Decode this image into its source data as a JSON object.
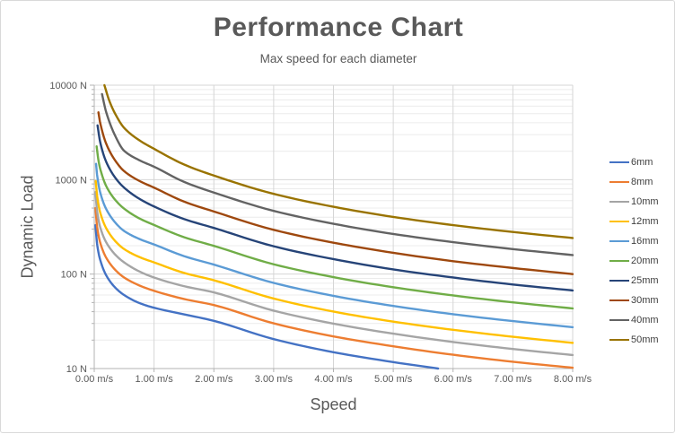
{
  "chart": {
    "title": "Performance Chart",
    "subtitle": "Max speed for each diameter",
    "x_axis": {
      "label": "Speed",
      "min": 0,
      "max": 8,
      "tick_values": [
        0,
        1,
        2,
        3,
        4,
        5,
        6,
        7,
        8
      ],
      "tick_labels": [
        "0.00 m/s",
        "1.00 m/s",
        "2.00 m/s",
        "3.00 m/s",
        "4.00 m/s",
        "5.00 m/s",
        "6.00 m/s",
        "7.00 m/s",
        "8.00 m/s"
      ]
    },
    "y_axis": {
      "label": "Dynamic Load",
      "scale": "log",
      "min": 10,
      "max": 10000,
      "tick_values": [
        10,
        100,
        1000,
        10000
      ],
      "tick_labels": [
        "10 N",
        "100 N",
        "1000 N",
        "10000 N"
      ]
    },
    "grid": {
      "major_color": "#d6d6d6",
      "minor_color": "#ececec",
      "axis_color": "#b3b3b3",
      "minor_horizontal": true,
      "vertical_major": true
    },
    "legend_position": "right",
    "text_color": "#595959",
    "tick_label_color": "#595959"
  },
  "chart_data": {
    "type": "line",
    "x_unit": "m/s",
    "y_unit": "N",
    "title": "Performance Chart",
    "subtitle": "Max speed for each diameter",
    "xlabel": "Speed",
    "ylabel": "Dynamic Load",
    "xlim": [
      0,
      8
    ],
    "ylim_log": [
      10,
      10000
    ],
    "series": [
      {
        "name": "6mm",
        "color": "#4472c4",
        "points": [
          [
            0.02,
            330
          ],
          [
            0.05,
            203
          ],
          [
            0.1,
            141
          ],
          [
            0.2,
            97
          ],
          [
            0.35,
            72
          ],
          [
            0.5,
            60
          ],
          [
            0.75,
            49.5
          ],
          [
            1,
            44
          ],
          [
            1.5,
            37.5
          ],
          [
            2,
            32
          ],
          [
            3,
            20.5
          ],
          [
            4,
            14.9
          ],
          [
            5,
            11.7
          ],
          [
            5.75,
            10
          ]
        ]
      },
      {
        "name": "8mm",
        "color": "#ed7d31",
        "points": [
          [
            0.02,
            500
          ],
          [
            0.05,
            309
          ],
          [
            0.1,
            215
          ],
          [
            0.2,
            149
          ],
          [
            0.35,
            111
          ],
          [
            0.5,
            92
          ],
          [
            0.75,
            76
          ],
          [
            1,
            66.5
          ],
          [
            1.5,
            54.5
          ],
          [
            2,
            47
          ],
          [
            3,
            30.1
          ],
          [
            4,
            21.9
          ],
          [
            5,
            17.2
          ],
          [
            6,
            14
          ],
          [
            7,
            11.8
          ],
          [
            8,
            10.2
          ]
        ]
      },
      {
        "name": "10mm",
        "color": "#a5a5a5",
        "points": [
          [
            0.02,
            738
          ],
          [
            0.05,
            453
          ],
          [
            0.1,
            313
          ],
          [
            0.2,
            217
          ],
          [
            0.35,
            161
          ],
          [
            0.5,
            133
          ],
          [
            0.75,
            107
          ],
          [
            1,
            92
          ],
          [
            1.5,
            74.5
          ],
          [
            2,
            64
          ],
          [
            3,
            41
          ],
          [
            4,
            29.9
          ],
          [
            5,
            23.4
          ],
          [
            6,
            19.1
          ],
          [
            7,
            16.1
          ],
          [
            8,
            13.9
          ]
        ]
      },
      {
        "name": "12mm",
        "color": "#ffc000",
        "points": [
          [
            0.025,
            967
          ],
          [
            0.05,
            659
          ],
          [
            0.1,
            448
          ],
          [
            0.2,
            306
          ],
          [
            0.35,
            224
          ],
          [
            0.5,
            184
          ],
          [
            0.75,
            152
          ],
          [
            1,
            133
          ],
          [
            1.5,
            103
          ],
          [
            2,
            86
          ],
          [
            3,
            55.1
          ],
          [
            4,
            40.1
          ],
          [
            5,
            31.4
          ],
          [
            6,
            25.7
          ],
          [
            7,
            21.7
          ],
          [
            8,
            18.7
          ]
        ]
      },
      {
        "name": "16mm",
        "color": "#5b9bd5",
        "points": [
          [
            0.03,
            1470
          ],
          [
            0.05,
            1092
          ],
          [
            0.1,
            730
          ],
          [
            0.2,
            488
          ],
          [
            0.35,
            352
          ],
          [
            0.5,
            286
          ],
          [
            0.75,
            236
          ],
          [
            1,
            206
          ],
          [
            1.5,
            155
          ],
          [
            2,
            126
          ],
          [
            3,
            80.7
          ],
          [
            4,
            58.8
          ],
          [
            5,
            46
          ],
          [
            6,
            37.6
          ],
          [
            7,
            31.8
          ],
          [
            8,
            27.4
          ]
        ]
      },
      {
        "name": "20mm",
        "color": "#70ad47",
        "points": [
          [
            0.04,
            2250
          ],
          [
            0.07,
            1607
          ],
          [
            0.1,
            1298
          ],
          [
            0.2,
            855
          ],
          [
            0.35,
            611
          ],
          [
            0.5,
            493
          ],
          [
            0.75,
            390
          ],
          [
            1,
            331
          ],
          [
            1.5,
            246
          ],
          [
            2,
            199
          ],
          [
            3,
            127
          ],
          [
            4,
            92.8
          ],
          [
            5,
            72.6
          ],
          [
            6,
            59.4
          ],
          [
            7,
            50.2
          ],
          [
            8,
            43.3
          ]
        ]
      },
      {
        "name": "25mm",
        "color": "#264478",
        "points": [
          [
            0.055,
            3750
          ],
          [
            0.1,
            2485
          ],
          [
            0.2,
            1544
          ],
          [
            0.35,
            1050
          ],
          [
            0.5,
            822
          ],
          [
            0.75,
            629
          ],
          [
            1,
            520
          ],
          [
            1.5,
            383
          ],
          [
            2,
            308
          ],
          [
            3,
            197
          ],
          [
            4,
            144
          ],
          [
            5,
            112
          ],
          [
            6,
            92
          ],
          [
            7,
            77.6
          ],
          [
            8,
            67.1
          ]
        ]
      },
      {
        "name": "30mm",
        "color": "#9e480e",
        "points": [
          [
            0.07,
            5160
          ],
          [
            0.1,
            3976
          ],
          [
            0.2,
            2400
          ],
          [
            0.35,
            1595
          ],
          [
            0.5,
            1230
          ],
          [
            0.75,
            972
          ],
          [
            1,
            823
          ],
          [
            1.5,
            586
          ],
          [
            2,
            460
          ],
          [
            3,
            294
          ],
          [
            4,
            215
          ],
          [
            5,
            168
          ],
          [
            6,
            137
          ],
          [
            7,
            116
          ],
          [
            8,
            100
          ]
        ]
      },
      {
        "name": "40mm",
        "color": "#636363",
        "points": [
          [
            0.13,
            8050
          ],
          [
            0.2,
            5175
          ],
          [
            0.35,
            2913
          ],
          [
            0.5,
            2020
          ],
          [
            0.75,
            1610
          ],
          [
            1,
            1370
          ],
          [
            1.5,
            948
          ],
          [
            2,
            730
          ],
          [
            3,
            467
          ],
          [
            4,
            341
          ],
          [
            5,
            266
          ],
          [
            6,
            218
          ],
          [
            7,
            184
          ],
          [
            8,
            159
          ]
        ]
      },
      {
        "name": "50mm",
        "color": "#997300",
        "points": [
          [
            0.17,
            10000
          ],
          [
            0.25,
            6894
          ],
          [
            0.35,
            4981
          ],
          [
            0.5,
            3530
          ],
          [
            0.75,
            2619
          ],
          [
            1,
            2120
          ],
          [
            1.5,
            1448
          ],
          [
            2,
            1105
          ],
          [
            3,
            707
          ],
          [
            4,
            516
          ],
          [
            5,
            403
          ],
          [
            6,
            330
          ],
          [
            7,
            279
          ],
          [
            8,
            241
          ]
        ]
      }
    ]
  }
}
